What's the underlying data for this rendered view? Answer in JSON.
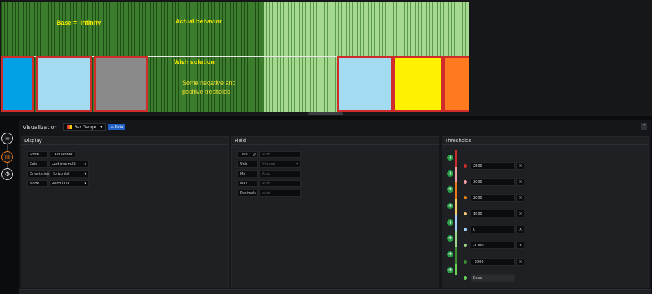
{
  "preview": {
    "overlays": {
      "base_label": "Base = -infinity",
      "actual_label": "Actual behavior",
      "wish_label": "Wish solution",
      "note_line1": "Some negative and",
      "note_line2": "positive tresholds"
    },
    "colors": {
      "blue": "#02a0e4",
      "lightblue": "#a3dbf0",
      "gray": "#8a8a8a",
      "yellow": "#fff200",
      "orange": "#ff7a1f",
      "box_border": "#d12c2c"
    }
  },
  "sidebar": {
    "icons": [
      "database-icon",
      "bar-gauge-icon",
      "gear-icon"
    ]
  },
  "editor": {
    "title": "Visualization",
    "viz_type": "Bar Gauge",
    "beta_badge": "Beta",
    "help": "?",
    "display": {
      "title": "Display",
      "rows": [
        {
          "label": "Show",
          "value": "Calculation"
        },
        {
          "label": "Calc",
          "value": "Last (not null)"
        },
        {
          "label": "Orientation",
          "value": "Horizontal"
        },
        {
          "label": "Mode",
          "value": "Retro LCD"
        }
      ]
    },
    "field": {
      "title": "Field",
      "rows": [
        {
          "label": "Title",
          "placeholder": "Auto"
        },
        {
          "label": "Unit",
          "placeholder": "Choose"
        },
        {
          "label": "Min",
          "placeholder": "Auto"
        },
        {
          "label": "Max",
          "placeholder": "Auto"
        },
        {
          "label": "Decimals",
          "placeholder": "auto"
        }
      ]
    },
    "thresholds": {
      "title": "Thresholds",
      "items": [
        {
          "value": "2500",
          "color": "#d12c2c",
          "removable": "×"
        },
        {
          "value": "3000",
          "color": "#f2a0a6",
          "removable": "×"
        },
        {
          "value": "2000",
          "color": "#eb7b18",
          "removable": "×"
        },
        {
          "value": "1000",
          "color": "#f2cc6f",
          "removable": "×"
        },
        {
          "value": "0",
          "color": "#a6cfff",
          "removable": "×"
        },
        {
          "value": "-1000",
          "color": "#9ed48a",
          "removable": "×"
        },
        {
          "value": "-2000",
          "color": "#3c8d2f",
          "removable": "×"
        },
        {
          "value": "Base",
          "color": "#6ccf56",
          "removable": ""
        }
      ],
      "add_label": "+"
    }
  }
}
